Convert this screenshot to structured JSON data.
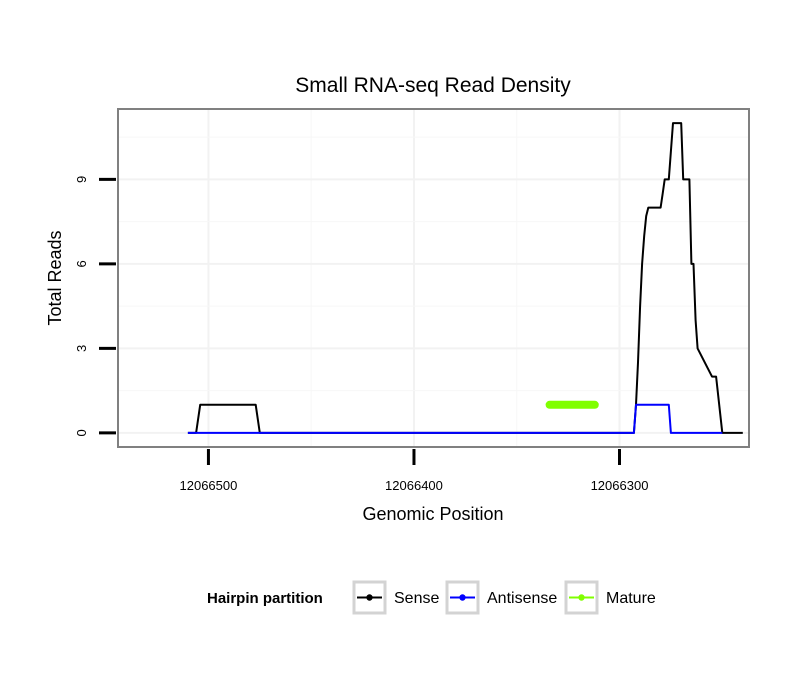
{
  "chart_data": {
    "type": "line",
    "title": "Small RNA-seq Read Density",
    "xlabel": "Genomic Position",
    "ylabel": "Total Reads",
    "x_reversed": true,
    "xlim": [
      12066544,
      12066237
    ],
    "ylim": [
      -0.5,
      11.5
    ],
    "x_ticks": [
      12066500,
      12066400,
      12066300
    ],
    "x_tick_labels": [
      "12066500",
      "12066400",
      "12066300"
    ],
    "y_ticks": [
      0,
      3,
      6,
      9
    ],
    "y_tick_labels": [
      "0",
      "3",
      "6",
      "9"
    ],
    "grid": true,
    "legend": {
      "title": "Hairpin partition",
      "placement": "bottom",
      "entries": [
        "Sense",
        "Antisense",
        "Mature"
      ]
    },
    "series": [
      {
        "name": "Sense",
        "color": "#000000",
        "x": [
          12066510,
          12066506,
          12066504,
          12066477,
          12066475,
          12066295,
          12066293,
          12066292,
          12066291,
          12066290,
          12066289,
          12066288,
          12066287,
          12066286,
          12066285,
          12066284,
          12066280,
          12066279,
          12066278,
          12066276,
          12066275,
          12066274,
          12066270,
          12066269,
          12066268,
          12066267,
          12066266,
          12066265,
          12066264,
          12066263,
          12066262,
          12066255,
          12066253,
          12066250,
          12066240
        ],
        "values": [
          0,
          0,
          1,
          1,
          0,
          0,
          0,
          1,
          2.5,
          4.5,
          6,
          7,
          7.7,
          8,
          8,
          8,
          8,
          8.5,
          9,
          9,
          10,
          11,
          11,
          9,
          9,
          9,
          9,
          6,
          6,
          4,
          3,
          2,
          2,
          0,
          0
        ]
      },
      {
        "name": "Antisense",
        "color": "#0000ff",
        "x": [
          12066510,
          12066295,
          12066293,
          12066292,
          12066276,
          12066275,
          12066250
        ],
        "values": [
          0,
          0,
          0,
          1,
          1,
          0,
          0
        ]
      },
      {
        "name": "Mature",
        "color": "#80ff00",
        "x": [
          12066334,
          12066312
        ],
        "values": [
          1,
          1
        ]
      }
    ]
  }
}
